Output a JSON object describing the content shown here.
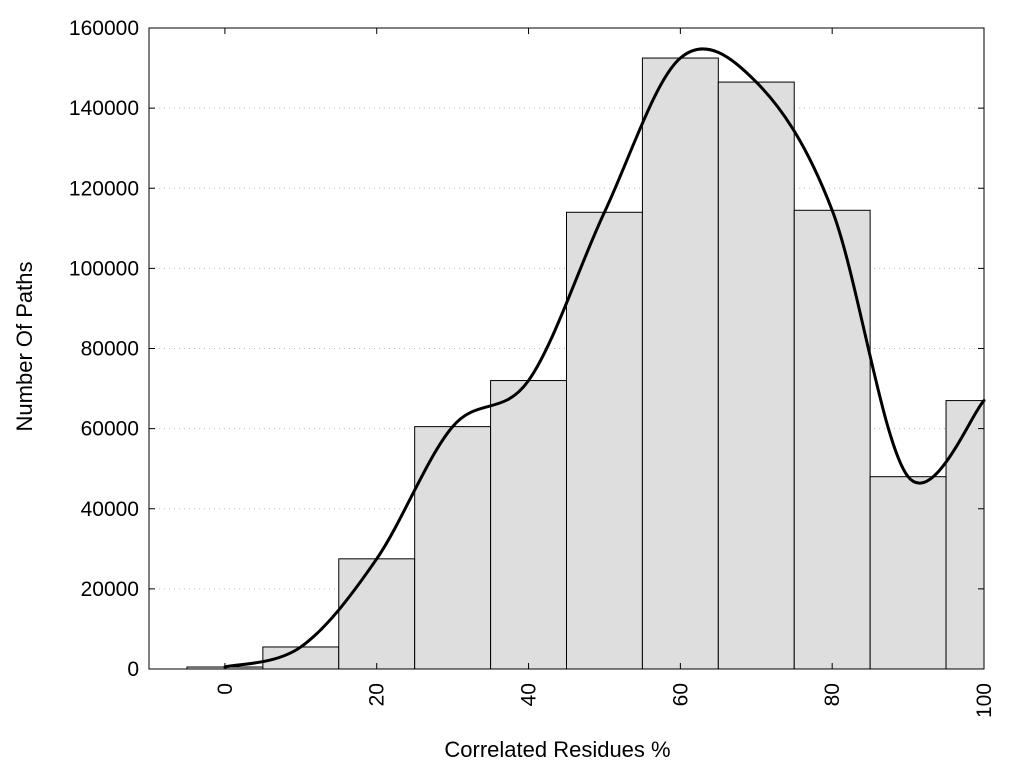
{
  "chart_data": {
    "type": "bar",
    "title": "",
    "xlabel": "Correlated Residues %",
    "ylabel": "Number Of Paths",
    "xlim": [
      -10,
      100
    ],
    "ylim": [
      0,
      160000
    ],
    "x_ticks": [
      "0",
      "20",
      "40",
      "60",
      "80",
      "100"
    ],
    "y_ticks": [
      "0",
      "20000",
      "40000",
      "60000",
      "80000",
      "100000",
      "120000",
      "140000",
      "160000"
    ],
    "grid": "horizontal dotted",
    "bar_fill": "#dedede",
    "bar_edge": "#000000",
    "bins": [
      {
        "center": 0,
        "value": 500
      },
      {
        "center": 10,
        "value": 5500
      },
      {
        "center": 20,
        "value": 27500
      },
      {
        "center": 30,
        "value": 60500
      },
      {
        "center": 40,
        "value": 72000
      },
      {
        "center": 50,
        "value": 114000
      },
      {
        "center": 60,
        "value": 152500
      },
      {
        "center": 70,
        "value": 146500
      },
      {
        "center": 80,
        "value": 114500
      },
      {
        "center": 90,
        "value": 48000
      },
      {
        "center": 100,
        "value": 67000
      }
    ],
    "bin_width": 10,
    "smooth_curve": {
      "x": [
        0,
        10,
        20,
        30,
        40,
        50,
        60,
        70,
        80,
        90,
        100
      ],
      "y": [
        500,
        5500,
        27500,
        60500,
        72000,
        114000,
        152500,
        146500,
        114500,
        48000,
        67000
      ]
    }
  }
}
